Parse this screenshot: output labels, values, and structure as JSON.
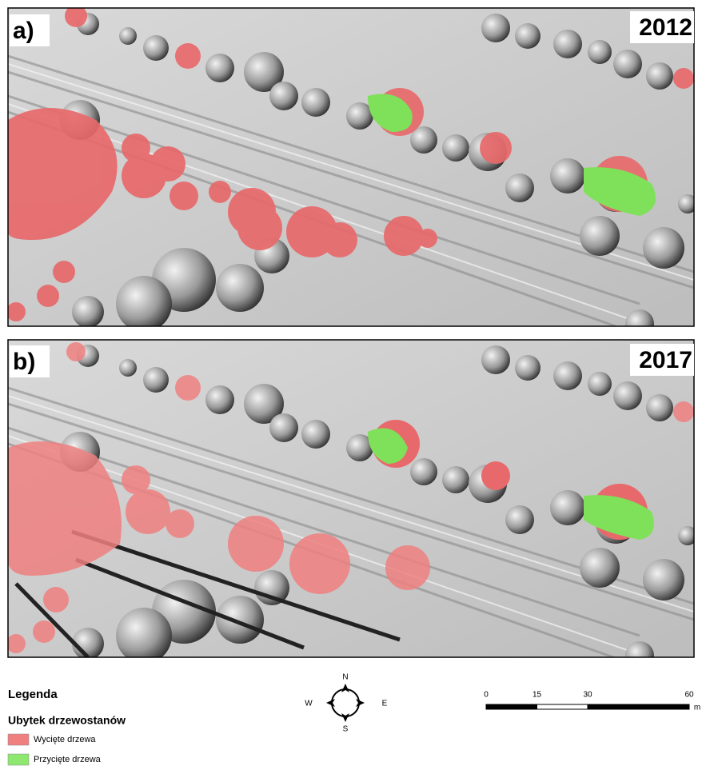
{
  "panels": [
    {
      "label": "a)",
      "year": "2012"
    },
    {
      "label": "b)",
      "year": "2017"
    }
  ],
  "legend": {
    "title": "Legenda",
    "subtitle": "Ubytek drzewostanów",
    "items": [
      {
        "label": "Wycięte drzewa",
        "color": "#f08080"
      },
      {
        "label": "Przycięte drzewa",
        "color": "#8ee870"
      }
    ]
  },
  "compass": {
    "n": "N",
    "e": "E",
    "s": "S",
    "w": "W"
  },
  "scale_bar": {
    "ticks": [
      0,
      15,
      30,
      60
    ],
    "unit": "m"
  }
}
